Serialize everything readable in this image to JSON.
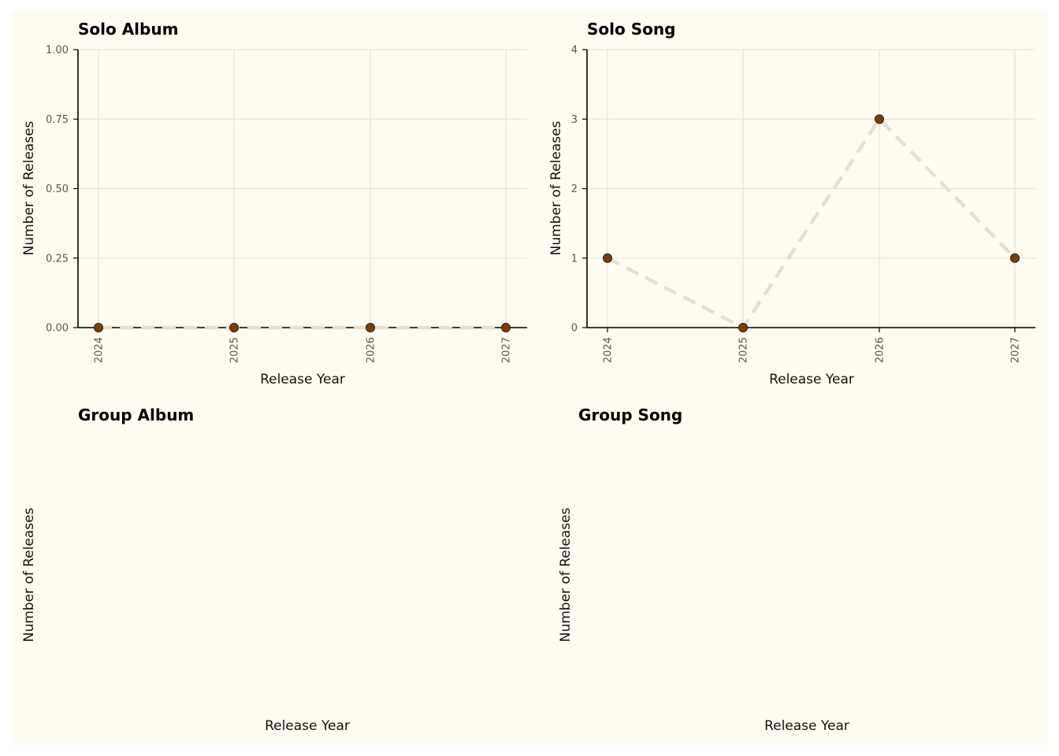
{
  "colors": {
    "panel_background": "#fefbf3",
    "marker_fill": "#7a3e0c",
    "line_color": "#e7dfcd",
    "grid_color": "#e8e4d8"
  },
  "chart_data": [
    {
      "type": "line",
      "title": "Solo Album",
      "xlabel": "Release Year",
      "ylabel": "Number of Releases",
      "x": [
        "2024",
        "2025",
        "2026",
        "2027"
      ],
      "series": [
        {
          "values": [
            0,
            0,
            0,
            0
          ]
        }
      ],
      "ylim": [
        0,
        1
      ],
      "yticks": [
        "0.00",
        "0.25",
        "0.50",
        "0.75",
        "1.00"
      ],
      "grid": true,
      "line_style": "dashed",
      "marker": "circle"
    },
    {
      "type": "line",
      "title": "Solo Song",
      "xlabel": "Release Year",
      "ylabel": "Number of Releases",
      "x": [
        "2024",
        "2025",
        "2026",
        "2027"
      ],
      "series": [
        {
          "values": [
            1,
            0,
            3,
            1
          ]
        }
      ],
      "ylim": [
        0,
        4
      ],
      "yticks": [
        "0",
        "1",
        "2",
        "3",
        "4"
      ],
      "grid": true,
      "line_style": "dashed",
      "marker": "circle"
    },
    {
      "type": "line",
      "title": "Group Album",
      "xlabel": "Release Year",
      "ylabel": "Number of Releases",
      "x": [],
      "series": [],
      "empty": true
    },
    {
      "type": "line",
      "title": "Group Song",
      "xlabel": "Release Year",
      "ylabel": "Number of Releases",
      "x": [],
      "series": [],
      "empty": true
    }
  ]
}
